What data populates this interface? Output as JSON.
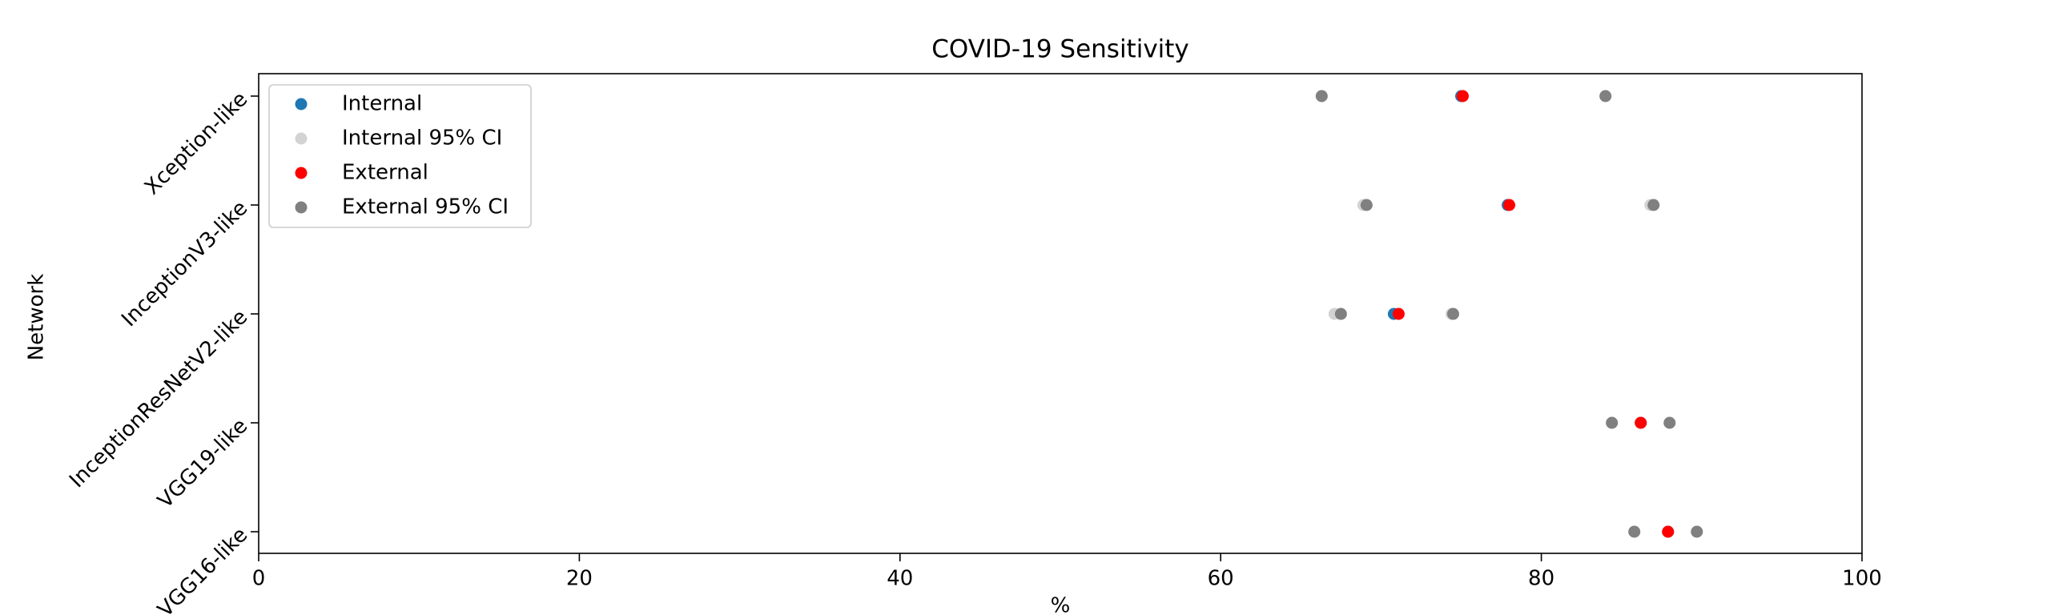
{
  "chart_data": {
    "type": "dot-ci",
    "title": "COVID-19 Sensitivity",
    "xlabel": "%",
    "ylabel": "Network",
    "categories": [
      "Xception-like",
      "InceptionV3-like",
      "InceptionResNetV2-like",
      "VGG19-like",
      "VGG16-like"
    ],
    "xlim": [
      0,
      100
    ],
    "xticks": [
      0,
      20,
      40,
      60,
      80,
      100
    ],
    "legend": "upper left",
    "series": [
      {
        "name": "Internal",
        "color": "#1f77b4",
        "values": [
          75.0,
          77.9,
          70.8,
          86.2,
          87.9
        ]
      },
      {
        "name": "Internal 95% CI",
        "color": "#d3d3d3",
        "values": [
          [
            66.3,
            84.0
          ],
          [
            68.9,
            86.8
          ],
          [
            67.1,
            74.4
          ],
          [
            84.4,
            88.0
          ],
          [
            85.8,
            89.7
          ]
        ]
      },
      {
        "name": "External",
        "color": "#ff0000",
        "values": [
          75.1,
          78.0,
          71.1,
          86.2,
          87.9
        ]
      },
      {
        "name": "External 95% CI",
        "color": "#808080",
        "values": [
          [
            66.3,
            84.0
          ],
          [
            69.1,
            87.0
          ],
          [
            67.5,
            74.5
          ],
          [
            84.4,
            88.0
          ],
          [
            85.8,
            89.7
          ]
        ]
      }
    ]
  }
}
